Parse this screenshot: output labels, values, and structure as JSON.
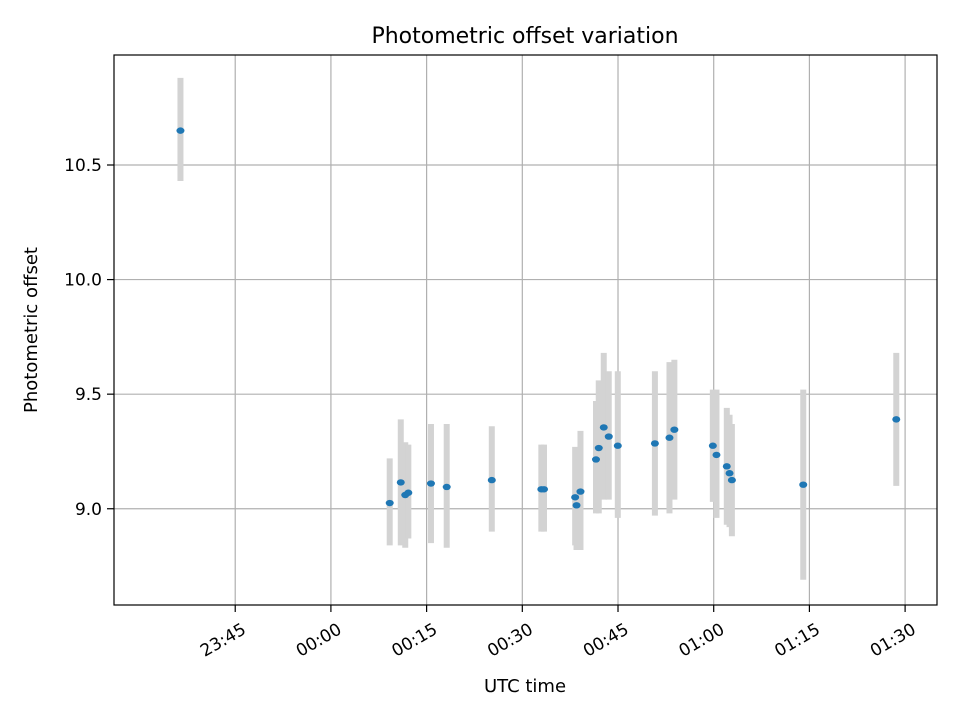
{
  "chart_data": {
    "type": "scatter",
    "title": "Photometric offset variation",
    "xlabel": "UTC time",
    "ylabel": "Photometric offset",
    "x_axis": {
      "scale": "time",
      "range": [
        "23:26",
        "01:35"
      ],
      "ticks": [
        "23:45",
        "00:00",
        "00:15",
        "00:30",
        "00:45",
        "01:00",
        "01:15",
        "01:30"
      ],
      "tick_label_rotation": "30deg"
    },
    "y_axis": {
      "range": [
        8.58,
        10.98
      ],
      "ticks": [
        "9.0",
        "9.5",
        "10.0",
        "10.5"
      ]
    },
    "grid": true,
    "legend": "none",
    "colors": {
      "marker": "#1f77b4",
      "errorbar": "#d3d3d3",
      "grid": "#b0b0b0"
    },
    "series": [
      {
        "points": [
          {
            "t": "23:36:25",
            "y": 10.65,
            "lo": 10.43,
            "hi": 10.88
          },
          {
            "t": "00:09:13",
            "y": 9.025,
            "lo": 8.84,
            "hi": 9.22
          },
          {
            "t": "00:10:57",
            "y": 9.115,
            "lo": 8.84,
            "hi": 9.39
          },
          {
            "t": "00:11:39",
            "y": 9.06,
            "lo": 8.83,
            "hi": 9.29
          },
          {
            "t": "00:12:08",
            "y": 9.07,
            "lo": 8.87,
            "hi": 9.28
          },
          {
            "t": "00:15:41",
            "y": 9.11,
            "lo": 8.85,
            "hi": 9.37
          },
          {
            "t": "00:18:09",
            "y": 9.095,
            "lo": 8.83,
            "hi": 9.37
          },
          {
            "t": "00:25:13",
            "y": 9.125,
            "lo": 8.9,
            "hi": 9.36
          },
          {
            "t": "00:32:59",
            "y": 9.085,
            "lo": 8.9,
            "hi": 9.28
          },
          {
            "t": "00:33:24",
            "y": 9.085,
            "lo": 8.9,
            "hi": 9.28
          },
          {
            "t": "00:38:17",
            "y": 9.05,
            "lo": 8.84,
            "hi": 9.27
          },
          {
            "t": "00:38:30",
            "y": 9.015,
            "lo": 8.82,
            "hi": 9.2
          },
          {
            "t": "00:39:07",
            "y": 9.075,
            "lo": 8.82,
            "hi": 9.34
          },
          {
            "t": "00:41:33",
            "y": 9.215,
            "lo": 8.98,
            "hi": 9.47
          },
          {
            "t": "00:41:59",
            "y": 9.265,
            "lo": 8.98,
            "hi": 9.56
          },
          {
            "t": "00:42:46",
            "y": 9.355,
            "lo": 9.04,
            "hi": 9.68
          },
          {
            "t": "00:43:33",
            "y": 9.315,
            "lo": 9.04,
            "hi": 9.6
          },
          {
            "t": "00:44:58",
            "y": 9.275,
            "lo": 8.96,
            "hi": 9.6
          },
          {
            "t": "00:50:47",
            "y": 9.285,
            "lo": 8.97,
            "hi": 9.6
          },
          {
            "t": "00:53:04",
            "y": 9.31,
            "lo": 8.98,
            "hi": 9.64
          },
          {
            "t": "00:53:50",
            "y": 9.345,
            "lo": 9.04,
            "hi": 9.65
          },
          {
            "t": "00:59:52",
            "y": 9.275,
            "lo": 9.03,
            "hi": 9.52
          },
          {
            "t": "01:00:26",
            "y": 9.235,
            "lo": 8.96,
            "hi": 9.52
          },
          {
            "t": "01:02:03",
            "y": 9.185,
            "lo": 8.93,
            "hi": 9.44
          },
          {
            "t": "01:02:29",
            "y": 9.155,
            "lo": 8.92,
            "hi": 9.41
          },
          {
            "t": "01:02:51",
            "y": 9.125,
            "lo": 8.88,
            "hi": 9.37
          },
          {
            "t": "01:14:02",
            "y": 9.105,
            "lo": 8.69,
            "hi": 9.52
          },
          {
            "t": "01:28:37",
            "y": 9.39,
            "lo": 9.1,
            "hi": 9.68
          }
        ]
      }
    ]
  }
}
